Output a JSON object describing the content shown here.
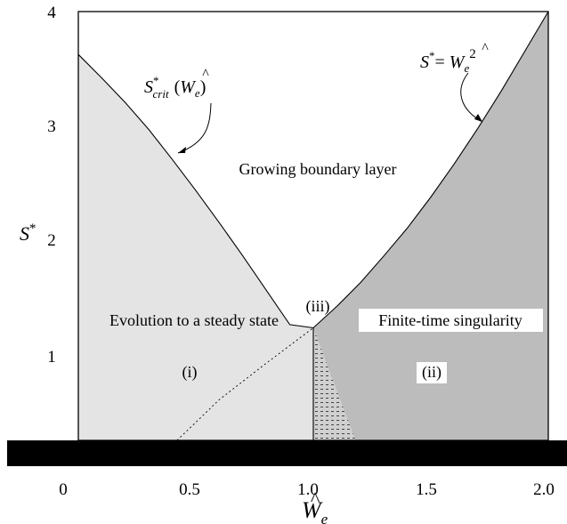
{
  "chart_data": {
    "type": "area",
    "xlabel_base": "W",
    "xlabel_hat": "^",
    "xlabel_sub": "e",
    "ylabel_base": "S",
    "ylabel_sup": "*",
    "xlim": [
      0,
      2.0
    ],
    "ylim": [
      0,
      4
    ],
    "x_ticks": [
      "0",
      "0.5",
      "1.0",
      "1.5",
      "2.0"
    ],
    "y_ticks": [
      "1",
      "2",
      "3",
      "4"
    ],
    "regions": [
      {
        "name": "Evolution to a steady state",
        "tag": "(i)",
        "color": "#e4e4e4"
      },
      {
        "name": "Finite-time singularity",
        "tag": "(ii)",
        "color": "#bcbcbc"
      },
      {
        "name": "Growing boundary layer",
        "tag": "(iii)",
        "color": "#ffffff"
      }
    ],
    "series": [
      {
        "name": "S*crit(Ŵe)",
        "x": [
          0.0,
          0.1,
          0.2,
          0.3,
          0.4,
          0.5,
          0.6,
          0.7,
          0.8,
          0.9,
          1.0
        ],
        "y": [
          3.6,
          3.38,
          3.15,
          2.9,
          2.62,
          2.33,
          2.03,
          1.72,
          1.4,
          1.08,
          1.05
        ]
      },
      {
        "name": "S* = Ŵe²",
        "x": [
          1.0,
          1.1,
          1.2,
          1.3,
          1.4,
          1.5,
          1.6,
          1.7,
          1.8,
          1.9,
          2.0
        ],
        "y": [
          1.05,
          1.25,
          1.47,
          1.72,
          1.98,
          2.27,
          2.58,
          2.91,
          3.26,
          3.63,
          4.0
        ]
      },
      {
        "name": "dotted boundary",
        "x": [
          0.42,
          0.6,
          0.8,
          1.0
        ],
        "y": [
          0.0,
          0.38,
          0.72,
          1.05
        ]
      }
    ],
    "annotations": {
      "crit_label": {
        "base": "S",
        "sup": "*",
        "sub": "crit",
        "arg_open": "(",
        "arg_base": "W",
        "arg_sub": "e",
        "arg_close": ")"
      },
      "parabola_label": {
        "base": "S",
        "sup": "*",
        "eq": "= ",
        "rhs_base": "W",
        "rhs_sub": "e",
        "rhs_sup": "2"
      }
    }
  }
}
